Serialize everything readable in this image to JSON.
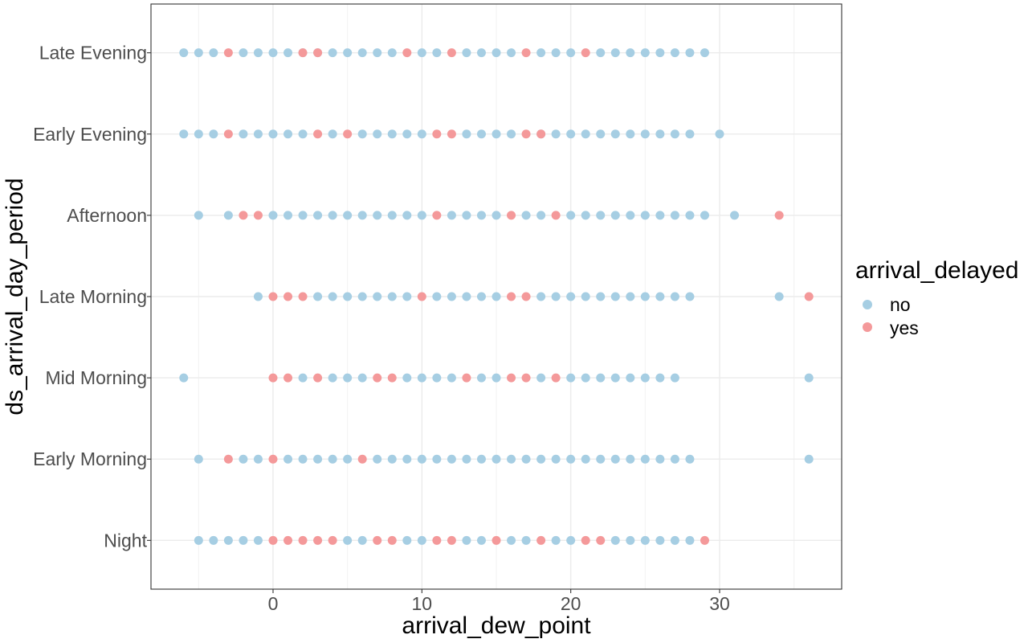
{
  "chart_data": {
    "type": "scatter",
    "xlabel": "arrival_dew_point",
    "ylabel": "ds_arrival_day_period",
    "xlim": [
      -8.2,
      38.2
    ],
    "x_ticks": [
      0,
      10,
      20,
      30
    ],
    "categories": [
      "Night",
      "Early Morning",
      "Mid Morning",
      "Late Morning",
      "Afternoon",
      "Early Evening",
      "Late Evening"
    ],
    "grid": true,
    "legend": {
      "title": "arrival_delayed",
      "position": "right",
      "entries": [
        {
          "label": "no",
          "color": "#a6cee3"
        },
        {
          "label": "yes",
          "color": "#f4999a"
        }
      ]
    },
    "series": [
      {
        "name": "no",
        "color": "#a6cee3",
        "points": {
          "Late Evening": [
            -6,
            -5,
            -4,
            -2,
            -1,
            0,
            1,
            2,
            3,
            4,
            5,
            6,
            7,
            8,
            10,
            11,
            13,
            14,
            15,
            16,
            18,
            19,
            20,
            22,
            23,
            24,
            25,
            26,
            27,
            28,
            29
          ],
          "Early Evening": [
            -6,
            -5,
            -4,
            -2,
            -1,
            0,
            1,
            2,
            4,
            6,
            7,
            8,
            9,
            10,
            13,
            14,
            15,
            16,
            18,
            19,
            20,
            21,
            22,
            23,
            24,
            25,
            26,
            27,
            28,
            30
          ],
          "Afternoon": [
            -5,
            -3,
            0,
            1,
            2,
            3,
            4,
            5,
            6,
            7,
            8,
            9,
            10,
            12,
            13,
            14,
            15,
            17,
            18,
            20,
            21,
            22,
            23,
            24,
            25,
            26,
            27,
            28,
            29,
            31
          ],
          "Late Morning": [
            -1,
            3,
            4,
            5,
            6,
            7,
            8,
            9,
            11,
            12,
            13,
            14,
            15,
            18,
            19,
            20,
            21,
            22,
            23,
            24,
            25,
            26,
            27,
            28,
            34
          ],
          "Mid Morning": [
            -6,
            2,
            4,
            5,
            6,
            9,
            10,
            11,
            12,
            14,
            15,
            18,
            20,
            21,
            22,
            23,
            24,
            25,
            26,
            27,
            36
          ],
          "Early Morning": [
            -5,
            -2,
            -1,
            1,
            2,
            3,
            4,
            5,
            7,
            8,
            9,
            10,
            11,
            12,
            13,
            14,
            15,
            16,
            17,
            18,
            19,
            20,
            21,
            22,
            23,
            24,
            25,
            26,
            27,
            28,
            36
          ],
          "Night": [
            -5,
            -4,
            -3,
            -2,
            -1,
            5,
            6,
            9,
            10,
            13,
            14,
            16,
            17,
            19,
            20,
            23,
            24,
            25,
            26,
            27,
            28
          ]
        }
      },
      {
        "name": "yes",
        "color": "#f4999a",
        "points": {
          "Late Evening": [
            -3,
            2,
            3,
            9,
            12,
            17,
            21
          ],
          "Early Evening": [
            -3,
            3,
            5,
            11,
            12,
            17,
            18
          ],
          "Afternoon": [
            -2,
            -1,
            11,
            16,
            19,
            34
          ],
          "Late Morning": [
            0,
            1,
            2,
            10,
            16,
            17,
            36
          ],
          "Mid Morning": [
            0,
            1,
            3,
            7,
            8,
            13,
            16,
            17,
            19
          ],
          "Early Morning": [
            -3,
            0,
            6
          ],
          "Night": [
            0,
            1,
            2,
            3,
            4,
            7,
            8,
            11,
            12,
            15,
            18,
            21,
            22,
            29
          ]
        }
      }
    ]
  }
}
